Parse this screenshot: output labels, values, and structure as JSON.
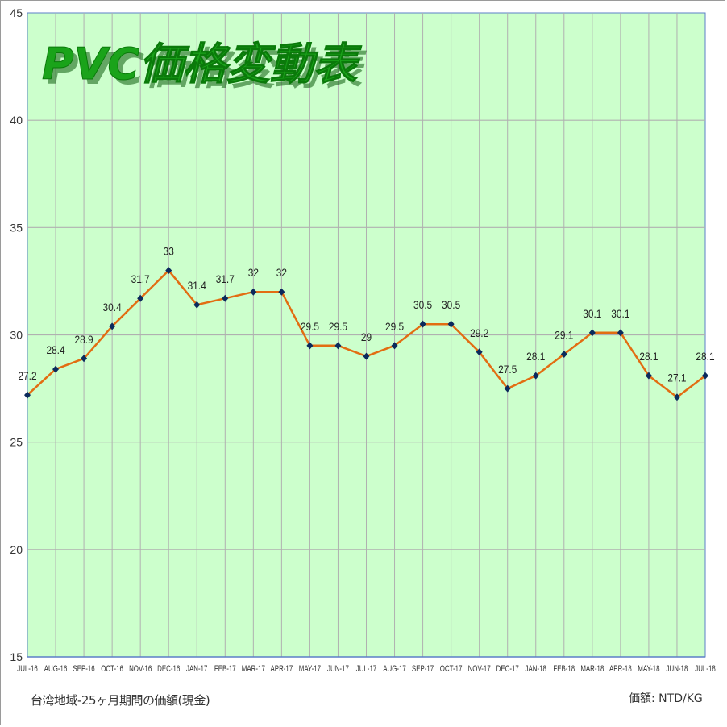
{
  "chart_data": {
    "type": "line",
    "title": "PVC価格変動表",
    "categories": [
      "JUL-16",
      "AUG-16",
      "SEP-16",
      "OCT-16",
      "NOV-16",
      "DEC-16",
      "JAN-17",
      "FEB-17",
      "MAR-17",
      "APR-17",
      "MAY-17",
      "JUN-17",
      "JUL-17",
      "AUG-17",
      "SEP-17",
      "OCT-17",
      "NOV-17",
      "DEC-17",
      "JAN-18",
      "FEB-18",
      "MAR-18",
      "APR-18",
      "MAY-18",
      "JUN-18",
      "JUL-18"
    ],
    "series": [
      {
        "values": [
          27.2,
          28.4,
          28.9,
          30.4,
          31.7,
          33,
          31.4,
          31.7,
          32,
          32,
          29.5,
          29.5,
          29,
          29.5,
          30.5,
          30.5,
          29.2,
          27.5,
          28.1,
          29.1,
          30.1,
          30.1,
          28.1,
          27.1,
          28.1
        ],
        "labels": [
          "27.2",
          "28.4",
          "28.9",
          "30.4",
          "31.7",
          "33",
          "31.4",
          "31.7",
          "32",
          "32",
          "29.5",
          "29.5",
          "29",
          "29.5",
          "30.5",
          "30.5",
          "29.2",
          "27.5",
          "28.1",
          "29.1",
          "30.1",
          "30.1",
          "28.1",
          "27.1",
          "28.1"
        ]
      }
    ],
    "ylim": [
      15,
      45
    ],
    "yticks": [
      "15",
      "20",
      "25",
      "30",
      "35",
      "40",
      "45"
    ],
    "grid": true,
    "colors": {
      "plot_bg": "#ccffcc",
      "line": "#e26d12",
      "marker": "#0b2a5c",
      "grid": "#b0b0b0",
      "title": "#1aa31a"
    }
  },
  "footer": {
    "left": "台湾地域-25ヶ月期間の価額(現金)",
    "right": "価額: NTD/KG"
  }
}
